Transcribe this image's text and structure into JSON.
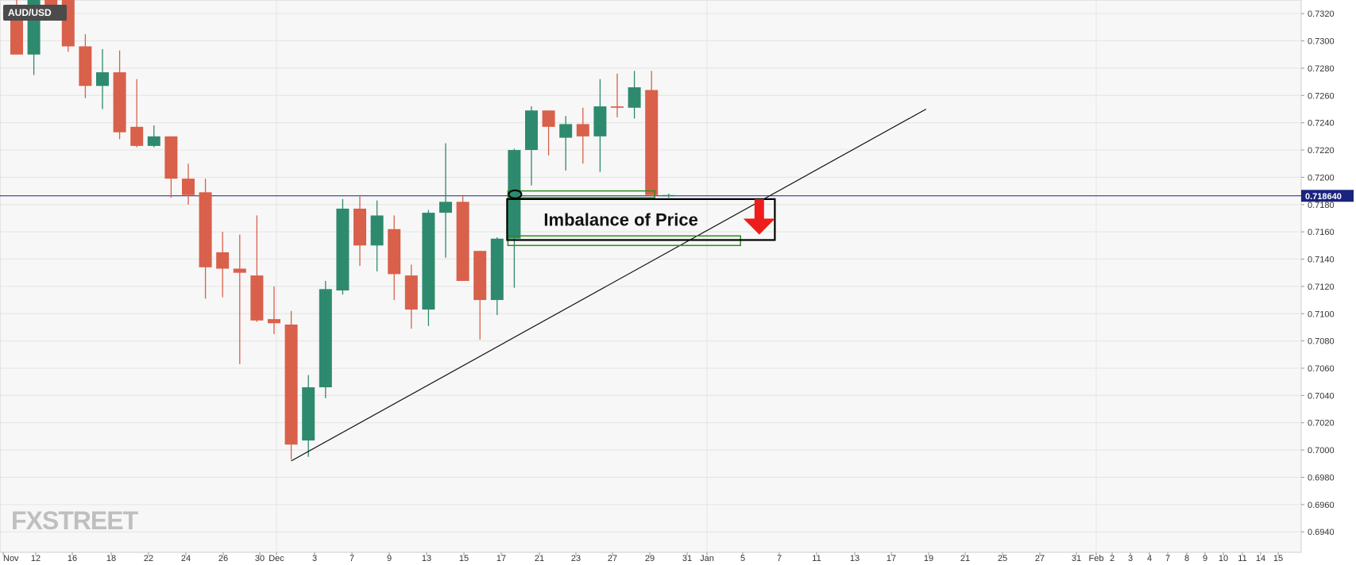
{
  "chart_data": {
    "type": "candlestick",
    "title": "AUD/USD",
    "watermark": "FXSTREET",
    "current_price_label": "0.718640",
    "current_price": 0.71864,
    "ylim": [
      0.6925,
      0.733
    ],
    "y_ticks": [
      "0.7320",
      "0.7300",
      "0.7280",
      "0.7260",
      "0.7240",
      "0.7220",
      "0.7200",
      "0.7180",
      "0.7160",
      "0.7140",
      "0.7120",
      "0.7100",
      "0.7080",
      "0.7060",
      "0.7040",
      "0.7020",
      "0.7000",
      "0.6980",
      "0.6960",
      "0.6940"
    ],
    "x_ticks": [
      "Nov",
      "12",
      "16",
      "18",
      "22",
      "24",
      "26",
      "30",
      "Dec",
      "3",
      "7",
      "9",
      "13",
      "15",
      "17",
      "21",
      "23",
      "27",
      "29",
      "31",
      "Jan",
      "5",
      "7",
      "11",
      "13",
      "17",
      "19",
      "21",
      "25",
      "27",
      "31",
      "Feb",
      "2",
      "3",
      "4",
      "7",
      "8",
      "9",
      "10",
      "11",
      "14",
      "15"
    ],
    "colors": {
      "up": "#2e8a6e",
      "down": "#d9604a",
      "background": "#f7f7f7",
      "grid": "#e4e4e4",
      "price_line": "#1a237e",
      "annotation_box": "#000000",
      "imbalance_zone": "#2e8b1f",
      "arrow": "#ee1c1c"
    },
    "candles": [
      {
        "o": 0.7322,
        "h": 0.733,
        "l": 0.729,
        "c": 0.729
      },
      {
        "o": 0.729,
        "h": 0.733,
        "l": 0.7275,
        "c": 0.733
      },
      {
        "o": 0.733,
        "h": 0.733,
        "l": 0.732,
        "c": 0.7325
      },
      {
        "o": 0.733,
        "h": 0.733,
        "l": 0.7292,
        "c": 0.7296
      },
      {
        "o": 0.7296,
        "h": 0.7305,
        "l": 0.7258,
        "c": 0.7267
      },
      {
        "o": 0.7267,
        "h": 0.7294,
        "l": 0.725,
        "c": 0.7277
      },
      {
        "o": 0.7277,
        "h": 0.7293,
        "l": 0.7228,
        "c": 0.7233
      },
      {
        "o": 0.7237,
        "h": 0.7272,
        "l": 0.7222,
        "c": 0.7223
      },
      {
        "o": 0.7223,
        "h": 0.7238,
        "l": 0.7222,
        "c": 0.723
      },
      {
        "o": 0.723,
        "h": 0.723,
        "l": 0.7185,
        "c": 0.7199
      },
      {
        "o": 0.7199,
        "h": 0.721,
        "l": 0.718,
        "c": 0.7187
      },
      {
        "o": 0.7189,
        "h": 0.7199,
        "l": 0.7111,
        "c": 0.7134
      },
      {
        "o": 0.7145,
        "h": 0.716,
        "l": 0.7112,
        "c": 0.7133
      },
      {
        "o": 0.7133,
        "h": 0.7158,
        "l": 0.7063,
        "c": 0.713
      },
      {
        "o": 0.7128,
        "h": 0.7172,
        "l": 0.7094,
        "c": 0.7095
      },
      {
        "o": 0.7096,
        "h": 0.712,
        "l": 0.7085,
        "c": 0.7093
      },
      {
        "o": 0.7092,
        "h": 0.7102,
        "l": 0.6993,
        "c": 0.7004
      },
      {
        "o": 0.7007,
        "h": 0.7055,
        "l": 0.6995,
        "c": 0.7046
      },
      {
        "o": 0.7046,
        "h": 0.7124,
        "l": 0.7038,
        "c": 0.7118
      },
      {
        "o": 0.7117,
        "h": 0.7184,
        "l": 0.7114,
        "c": 0.7177
      },
      {
        "o": 0.7177,
        "h": 0.7187,
        "l": 0.7135,
        "c": 0.715
      },
      {
        "o": 0.715,
        "h": 0.7183,
        "l": 0.7131,
        "c": 0.7172
      },
      {
        "o": 0.7162,
        "h": 0.7172,
        "l": 0.711,
        "c": 0.7129
      },
      {
        "o": 0.7128,
        "h": 0.7136,
        "l": 0.7089,
        "c": 0.7103
      },
      {
        "o": 0.7103,
        "h": 0.7176,
        "l": 0.7091,
        "c": 0.7174
      },
      {
        "o": 0.7174,
        "h": 0.7225,
        "l": 0.7141,
        "c": 0.7182
      },
      {
        "o": 0.7182,
        "h": 0.7186,
        "l": 0.7124,
        "c": 0.7124
      },
      {
        "o": 0.7146,
        "h": 0.7146,
        "l": 0.7081,
        "c": 0.711
      },
      {
        "o": 0.711,
        "h": 0.7156,
        "l": 0.7099,
        "c": 0.7155
      },
      {
        "o": 0.7155,
        "h": 0.7221,
        "l": 0.7119,
        "c": 0.722
      },
      {
        "o": 0.722,
        "h": 0.7252,
        "l": 0.7194,
        "c": 0.7249
      },
      {
        "o": 0.7249,
        "h": 0.7249,
        "l": 0.7216,
        "c": 0.7237
      },
      {
        "o": 0.7229,
        "h": 0.7245,
        "l": 0.7205,
        "c": 0.7239
      },
      {
        "o": 0.7239,
        "h": 0.7251,
        "l": 0.721,
        "c": 0.723
      },
      {
        "o": 0.723,
        "h": 0.7272,
        "l": 0.7204,
        "c": 0.7252
      },
      {
        "o": 0.7252,
        "h": 0.7276,
        "l": 0.7244,
        "c": 0.7251
      },
      {
        "o": 0.7251,
        "h": 0.7278,
        "l": 0.7243,
        "c": 0.7266
      },
      {
        "o": 0.7264,
        "h": 0.7278,
        "l": 0.7186,
        "c": 0.7187
      },
      {
        "o": 0.7186,
        "h": 0.7188,
        "l": 0.7185,
        "c": 0.7187
      }
    ],
    "trendline": {
      "from": {
        "candle": 16,
        "price": 0.6992
      },
      "to": {
        "candle": 53,
        "price": 0.725
      }
    },
    "annotations": {
      "box_label": "Imbalance of Price",
      "box": {
        "from_candle": 29,
        "to_candle": 44,
        "price_top": 0.7184,
        "price_bottom": 0.7154
      },
      "zones": [
        {
          "from_candle": 29,
          "to_candle": 37,
          "price_top": 0.719,
          "price_bottom": 0.7185
        },
        {
          "from_candle": 29,
          "to_candle": 42,
          "price_top": 0.7157,
          "price_bottom": 0.715
        }
      ],
      "arrow": {
        "candle": 43,
        "price_top": 0.7184,
        "price_bottom": 0.7158,
        "direction": "down"
      }
    }
  }
}
